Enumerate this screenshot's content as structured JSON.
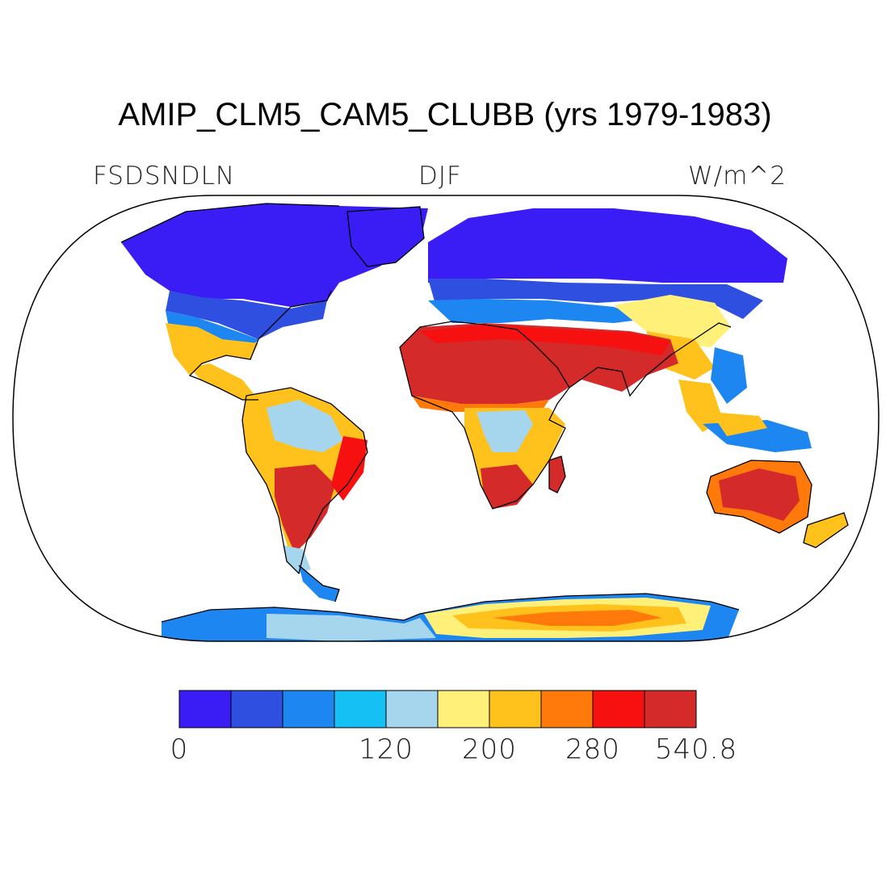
{
  "title": "AMIP_CLM5_CAM5_CLUBB (yrs 1979-1983)",
  "variable": "FSDSNDLN",
  "season": "DJF",
  "units": "W/m^2",
  "colorbar": {
    "colors": [
      "#3a1cf5",
      "#2f4fe0",
      "#1e86f0",
      "#15c0f5",
      "#a6d5ee",
      "#fff07a",
      "#ffc21c",
      "#ff7a0a",
      "#f71010",
      "#d42a2a"
    ],
    "tick_labels": [
      "0",
      "120",
      "200",
      "280",
      "540.8"
    ]
  },
  "map_colors": {
    "ocean": "#ffffff",
    "coast": "#000000",
    "frame": "#000000"
  }
}
